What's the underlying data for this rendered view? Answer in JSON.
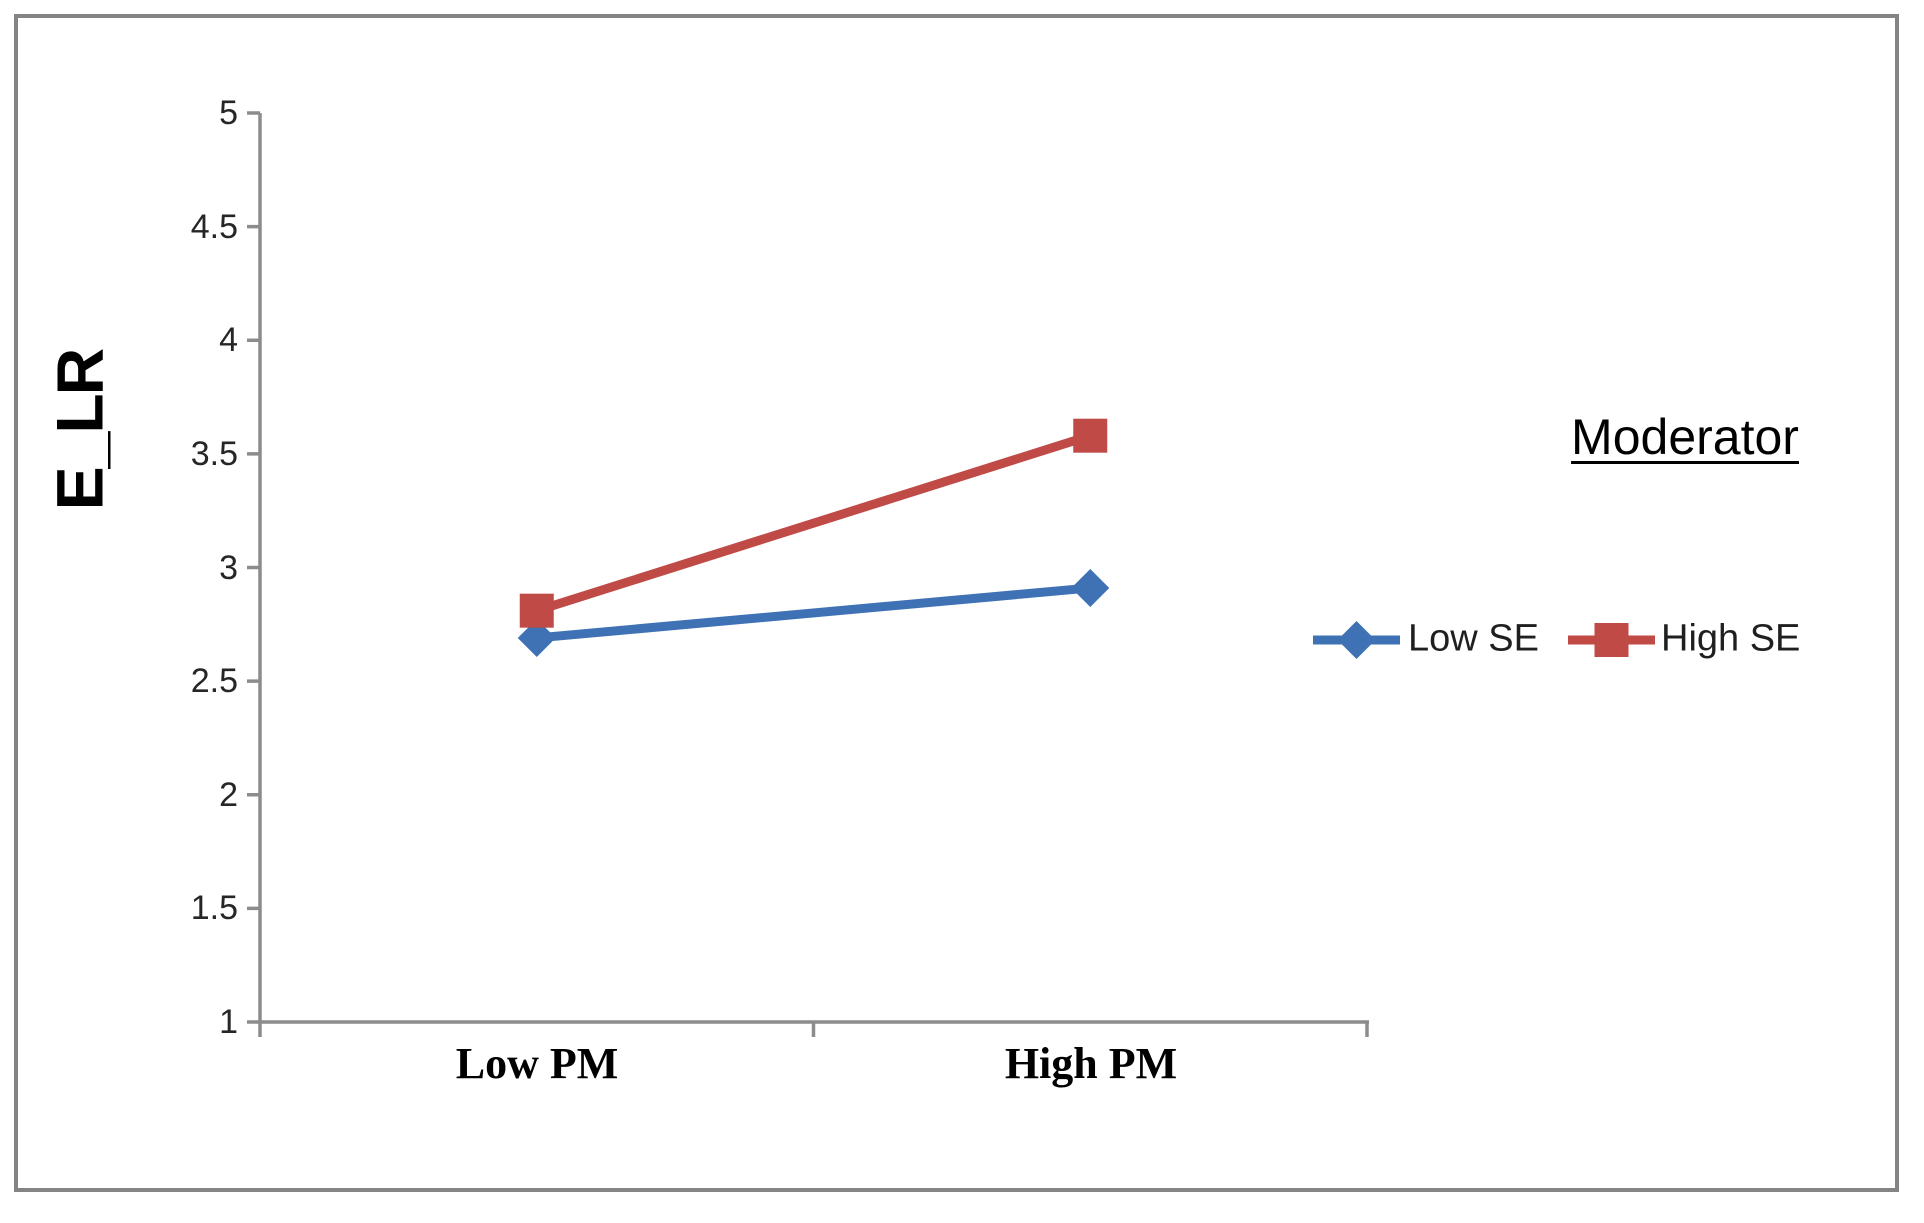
{
  "chart_data": {
    "type": "line",
    "title": "",
    "xlabel": "",
    "ylabel": "E_LR",
    "categories": [
      "Low PM",
      "High PM"
    ],
    "series": [
      {
        "name": "Low SE",
        "color": "#3E72B5",
        "marker": "diamond",
        "values": [
          2.69,
          2.91
        ]
      },
      {
        "name": "High SE",
        "color": "#C04A46",
        "marker": "square",
        "values": [
          2.81,
          3.58
        ]
      }
    ],
    "ylim": [
      1,
      5
    ],
    "ytick_step": 0.5,
    "yticks": [
      "5",
      "4.5",
      "4",
      "3.5",
      "3",
      "2.5",
      "2",
      "1.5",
      "1"
    ],
    "grid": false,
    "legend": {
      "title": "Moderator",
      "position": "right"
    },
    "axis_color": "#8C8C8C",
    "frame_color": "#848484",
    "text_color": "#262626"
  }
}
